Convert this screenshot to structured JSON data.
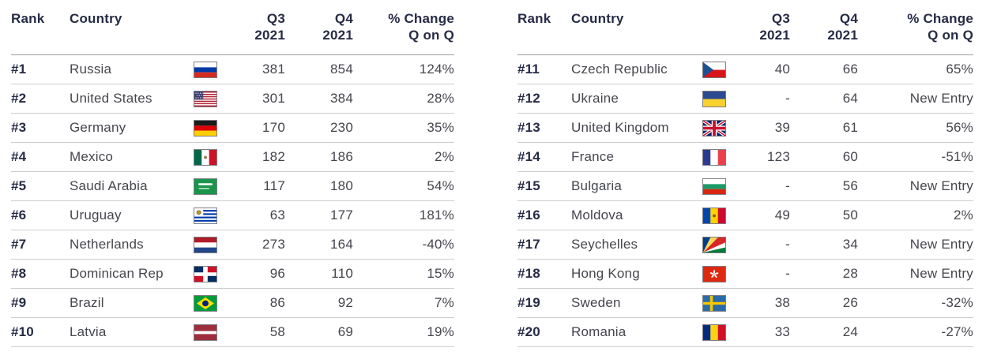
{
  "colors": {
    "header_text": "#262b45",
    "body_text": "#45464e",
    "divider_light": "#cdcdd0",
    "divider_dark": "#9d9da3"
  },
  "header_labels": {
    "rank": "Rank",
    "country": "Country",
    "q3": [
      "Q3",
      "2021"
    ],
    "q4": [
      "Q4",
      "2021"
    ],
    "change": [
      "% Change",
      "Q on Q"
    ]
  },
  "chart_data": [
    {
      "type": "table",
      "columns": [
        "Rank",
        "Country",
        "Q3 2021",
        "Q4 2021",
        "% Change Q on Q"
      ],
      "rows": [
        {
          "rank": "#1",
          "country": "Russia",
          "flag": "russia",
          "q3": "381",
          "q4": "854",
          "change": "124%"
        },
        {
          "rank": "#2",
          "country": "United States",
          "flag": "usa",
          "q3": "301",
          "q4": "384",
          "change": "28%"
        },
        {
          "rank": "#3",
          "country": "Germany",
          "flag": "germany",
          "q3": "170",
          "q4": "230",
          "change": "35%"
        },
        {
          "rank": "#4",
          "country": "Mexico",
          "flag": "mexico",
          "q3": "182",
          "q4": "186",
          "change": "2%"
        },
        {
          "rank": "#5",
          "country": "Saudi Arabia",
          "flag": "saudi",
          "q3": "117",
          "q4": "180",
          "change": "54%"
        },
        {
          "rank": "#6",
          "country": "Uruguay",
          "flag": "uruguay",
          "q3": "63",
          "q4": "177",
          "change": "181%"
        },
        {
          "rank": "#7",
          "country": "Netherlands",
          "flag": "netherlands",
          "q3": "273",
          "q4": "164",
          "change": "-40%"
        },
        {
          "rank": "#8",
          "country": "Dominican Rep",
          "flag": "dominican",
          "q3": "96",
          "q4": "110",
          "change": "15%"
        },
        {
          "rank": "#9",
          "country": "Brazil",
          "flag": "brazil",
          "q3": "86",
          "q4": "92",
          "change": "7%"
        },
        {
          "rank": "#10",
          "country": "Latvia",
          "flag": "latvia",
          "q3": "58",
          "q4": "69",
          "change": "19%"
        }
      ]
    },
    {
      "type": "table",
      "columns": [
        "Rank",
        "Country",
        "Q3 2021",
        "Q4 2021",
        "% Change Q on Q"
      ],
      "rows": [
        {
          "rank": "#11",
          "country": "Czech Republic",
          "flag": "czech",
          "q3": "40",
          "q4": "66",
          "change": "65%"
        },
        {
          "rank": "#12",
          "country": "Ukraine",
          "flag": "ukraine",
          "q3": "-",
          "q4": "64",
          "change": "New Entry"
        },
        {
          "rank": "#13",
          "country": "United Kingdom",
          "flag": "uk",
          "q3": "39",
          "q4": "61",
          "change": "56%"
        },
        {
          "rank": "#14",
          "country": "France",
          "flag": "france",
          "q3": "123",
          "q4": "60",
          "change": "-51%"
        },
        {
          "rank": "#15",
          "country": "Bulgaria",
          "flag": "bulgaria",
          "q3": "-",
          "q4": "56",
          "change": "New Entry"
        },
        {
          "rank": "#16",
          "country": "Moldova",
          "flag": "moldova",
          "q3": "49",
          "q4": "50",
          "change": "2%"
        },
        {
          "rank": "#17",
          "country": "Seychelles",
          "flag": "seychelles",
          "q3": "-",
          "q4": "34",
          "change": "New Entry"
        },
        {
          "rank": "#18",
          "country": "Hong Kong",
          "flag": "hongkong",
          "q3": "-",
          "q4": "28",
          "change": "New Entry"
        },
        {
          "rank": "#19",
          "country": "Sweden",
          "flag": "sweden",
          "q3": "38",
          "q4": "26",
          "change": "-32%"
        },
        {
          "rank": "#20",
          "country": "Romania",
          "flag": "romania",
          "q3": "33",
          "q4": "24",
          "change": "-27%"
        }
      ]
    }
  ]
}
